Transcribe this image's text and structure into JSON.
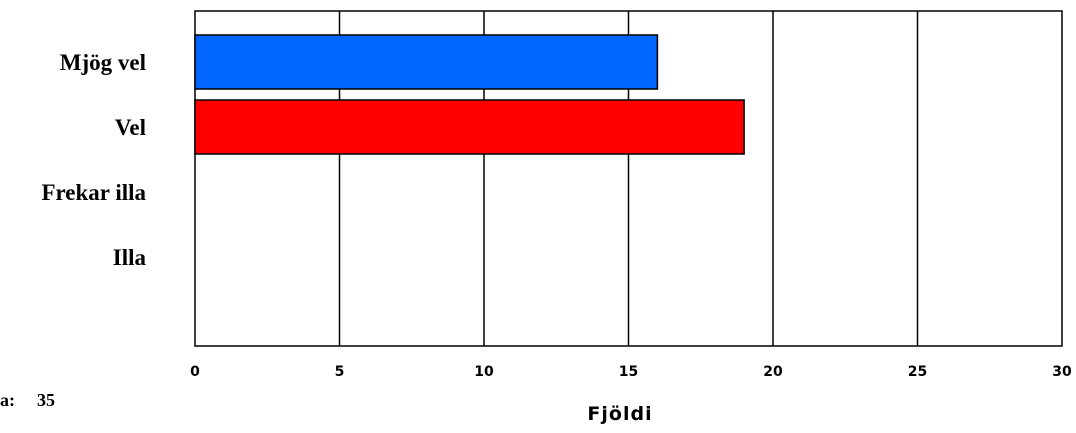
{
  "chart_data": {
    "type": "bar",
    "orientation": "horizontal",
    "categories": [
      "Mjög vel",
      "Vel",
      "Frekar illa",
      "Illa"
    ],
    "values": [
      16,
      19,
      0,
      0
    ],
    "bar_colors": [
      "#0066ff",
      "#ff0000",
      "#0066ff",
      "#ff0000"
    ],
    "xlabel": "Fjöldi",
    "xlim": [
      0,
      30
    ],
    "xticks": [
      "0",
      "5",
      "10",
      "15",
      "20",
      "25",
      "30"
    ],
    "grid": "vertical",
    "count_label": "a:",
    "count_value": "35"
  }
}
